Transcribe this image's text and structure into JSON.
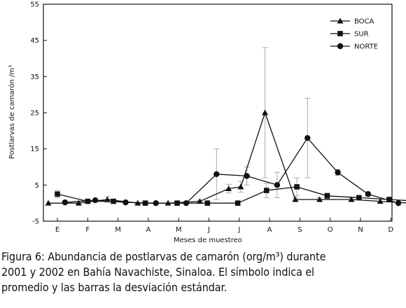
{
  "chart_data": {
    "type": "line",
    "title": "",
    "xlabel": "Meses de muestreo",
    "ylabel": "Postlarvas de camarón /m³",
    "categories": [
      "E",
      "F",
      "M",
      "A",
      "M",
      "J",
      "J",
      "A",
      "S",
      "O",
      "N",
      "D"
    ],
    "ylim": [
      -5,
      55
    ],
    "yticks": [
      -5,
      5,
      15,
      25,
      35,
      45,
      55
    ],
    "ytick_labels": [
      "-5",
      "5",
      "15",
      "25",
      "35",
      "45",
      "55"
    ],
    "grid": false,
    "legend_position": "top-right",
    "series": [
      {
        "name": "BOCA",
        "marker": "triangle",
        "x": [
          -0.3,
          0.7,
          1.65,
          2.65,
          3.65,
          4.7,
          5.65,
          6.05,
          6.85,
          7.85,
          8.65,
          9.7,
          10.65,
          11.65
        ],
        "y": [
          0.0,
          0.0,
          1.0,
          0.0,
          0.0,
          0.5,
          4.0,
          4.5,
          25.0,
          1.0,
          1.0,
          1.0,
          0.5,
          0.0
        ],
        "err": [
          0,
          0,
          0.8,
          0,
          0,
          0.3,
          1.2,
          1.5,
          18.0,
          0.5,
          0.5,
          0.5,
          0,
          0
        ]
      },
      {
        "name": "SUR",
        "marker": "square",
        "x": [
          0.0,
          1.0,
          1.85,
          2.9,
          3.95,
          4.95,
          5.95,
          6.9,
          7.9,
          8.9,
          9.95,
          10.95,
          11.95
        ],
        "y": [
          2.5,
          0.5,
          0.5,
          0.0,
          0.0,
          0.0,
          0.0,
          3.5,
          4.5,
          2.0,
          1.5,
          1.0,
          0.5
        ],
        "err": [
          1.0,
          0.3,
          0.3,
          0,
          0,
          0,
          0,
          2.0,
          2.5,
          0.8,
          0.6,
          0.5,
          0.3
        ]
      },
      {
        "name": "NORTE",
        "marker": "circle",
        "x": [
          0.25,
          1.25,
          2.25,
          3.25,
          4.25,
          5.25,
          6.25,
          7.25,
          8.25,
          9.25,
          10.25,
          11.25
        ],
        "y": [
          0.2,
          0.8,
          0.2,
          0.0,
          0.0,
          8.0,
          7.5,
          5.0,
          18.0,
          8.5,
          2.5,
          0.0
        ],
        "err": [
          0.2,
          0.3,
          0.2,
          0,
          0,
          7.0,
          2.5,
          3.5,
          11.0,
          0.8,
          0.6,
          0
        ]
      }
    ]
  },
  "caption": {
    "lines": [
      "Figura 6: Abundancia de postlarvas de camarón (org/m³) durante",
      "2001 y 2002 en Bahía Navachiste, Sinaloa. El símbolo indica el",
      "promedio y las barras la desviación estándar."
    ]
  },
  "colors": {
    "ink": "#111111",
    "errorbar": "#aaaaaa",
    "background": "#ffffff"
  }
}
